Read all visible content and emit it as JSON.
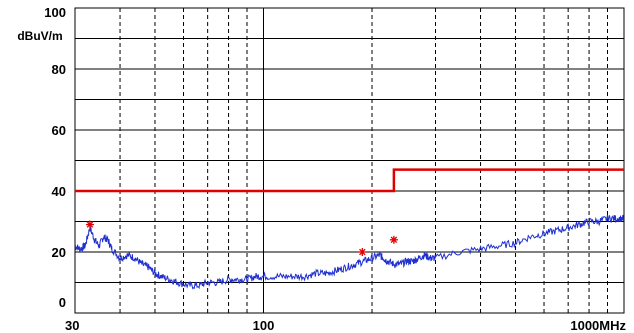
{
  "chart_data": {
    "type": "line",
    "ylabel": "dBuV/m",
    "x_unit": "MHz",
    "x_scale": "log",
    "xlim": [
      30,
      1000
    ],
    "ylim": [
      0,
      100
    ],
    "grid": true,
    "y_ticks": [
      {
        "value": 100,
        "label": "100"
      },
      {
        "value": 80,
        "label": "80"
      },
      {
        "value": 60,
        "label": "60"
      },
      {
        "value": 40,
        "label": "40"
      },
      {
        "value": 20,
        "label": "20"
      },
      {
        "value": 0,
        "label": "0"
      }
    ],
    "x_tick_labels": [
      {
        "value": 30,
        "label": "30"
      },
      {
        "value": 100,
        "label": "100"
      },
      {
        "value": 1000,
        "label": "1000MHz"
      }
    ],
    "limit_line": {
      "color": "#e00000",
      "x": [
        30,
        230,
        230,
        1000
      ],
      "y": [
        40,
        40,
        47,
        47
      ]
    },
    "measurement": {
      "color": "#1f2fd0",
      "x": [
        30,
        31,
        32,
        33,
        34,
        35,
        36,
        37,
        38,
        40,
        42,
        44,
        46,
        48,
        50,
        52,
        55,
        58,
        62,
        66,
        70,
        75,
        80,
        85,
        90,
        95,
        100,
        110,
        120,
        130,
        140,
        150,
        160,
        170,
        180,
        190,
        200,
        210,
        215,
        220,
        230,
        240,
        250,
        260,
        270,
        280,
        290,
        300,
        350,
        400,
        450,
        500,
        550,
        600,
        650,
        700,
        750,
        800,
        850,
        900,
        950,
        1000
      ],
      "y": [
        22,
        21,
        22,
        28,
        24,
        22,
        25,
        24,
        21,
        18,
        19,
        18,
        16,
        15,
        13,
        12,
        11,
        10,
        9,
        9,
        10,
        10,
        11,
        11,
        11,
        12,
        12,
        12,
        12,
        12,
        13,
        13,
        14,
        15,
        16,
        17,
        18,
        19,
        18,
        17,
        16,
        16,
        17,
        17,
        18,
        19,
        18,
        18,
        20,
        21,
        22,
        23,
        25,
        26,
        27,
        28,
        29,
        30,
        30,
        31,
        31,
        31
      ]
    },
    "markers": {
      "color": "#e00000",
      "points": [
        {
          "x": 33,
          "y": 29
        },
        {
          "x": 188,
          "y": 20
        },
        {
          "x": 230,
          "y": 24
        }
      ]
    }
  }
}
